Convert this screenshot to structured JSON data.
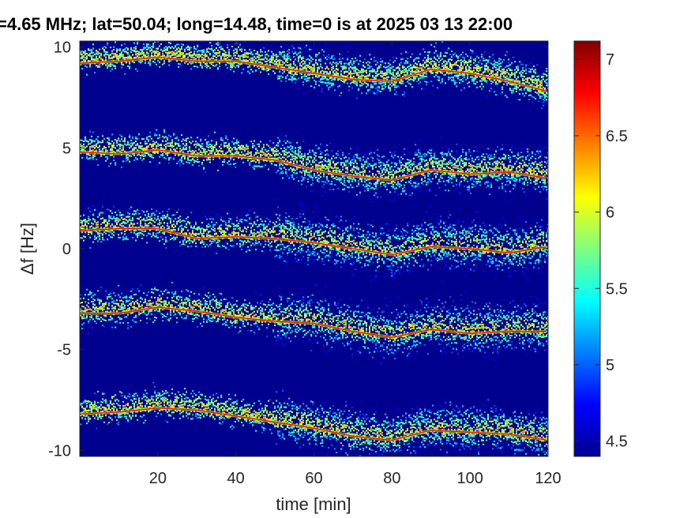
{
  "chart_data": {
    "type": "heatmap",
    "title": "=4.65 MHz;  lat=50.04; long=14.48, time=0 is at 2025 03 13 22:00",
    "xlabel": "time [min]",
    "ylabel": "Δf [Hz]",
    "xlim": [
      0,
      120
    ],
    "ylim": [
      -10.3,
      10.3
    ],
    "xticks": [
      20,
      40,
      60,
      80,
      100,
      120
    ],
    "yticks": [
      10,
      5,
      0,
      -5,
      -10
    ],
    "colorbar": {
      "range": [
        4.4,
        7.12
      ],
      "ticks": [
        4.5,
        5,
        5.5,
        6,
        6.5,
        7
      ]
    },
    "grid": false,
    "traces": [
      {
        "name": "",
        "x": [
          0,
          10,
          20,
          30,
          40,
          50,
          60,
          70,
          80,
          90,
          100,
          110,
          120
        ],
        "y": [
          9.2,
          9.3,
          9.5,
          9.3,
          9.3,
          9.0,
          8.7,
          8.4,
          8.3,
          8.9,
          8.7,
          8.3,
          7.8
        ],
        "spread": 0.6
      },
      {
        "name": "",
        "x": [
          0,
          10,
          20,
          30,
          40,
          50,
          60,
          70,
          80,
          90,
          100,
          110,
          120
        ],
        "y": [
          4.8,
          4.7,
          4.9,
          4.6,
          4.6,
          4.4,
          3.9,
          3.6,
          3.4,
          3.9,
          3.7,
          3.8,
          3.5
        ],
        "spread": 0.7
      },
      {
        "name": "",
        "x": [
          0,
          10,
          20,
          30,
          40,
          50,
          60,
          70,
          80,
          90,
          100,
          110,
          120
        ],
        "y": [
          0.9,
          1.0,
          1.0,
          0.5,
          0.6,
          0.5,
          0.3,
          0.0,
          -0.3,
          0.1,
          0.0,
          -0.2,
          0.1
        ],
        "spread": 0.8
      },
      {
        "name": "",
        "x": [
          0,
          10,
          20,
          30,
          40,
          50,
          60,
          70,
          80,
          90,
          100,
          110,
          120
        ],
        "y": [
          -3.2,
          -3.2,
          -2.9,
          -3.1,
          -3.4,
          -3.6,
          -3.7,
          -4.1,
          -4.4,
          -4.0,
          -4.2,
          -4.1,
          -4.1
        ],
        "spread": 0.8
      },
      {
        "name": "",
        "x": [
          0,
          10,
          20,
          30,
          40,
          50,
          60,
          70,
          80,
          90,
          100,
          110,
          120
        ],
        "y": [
          -8.2,
          -8.1,
          -7.9,
          -8.0,
          -8.3,
          -8.6,
          -8.9,
          -9.3,
          -9.5,
          -9.0,
          -9.1,
          -9.2,
          -9.5
        ],
        "spread": 0.7
      }
    ]
  }
}
